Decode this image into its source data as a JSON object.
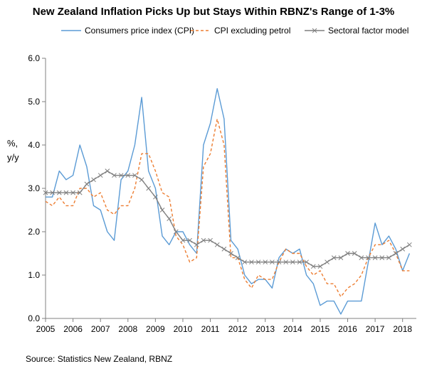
{
  "chart_data": {
    "type": "line",
    "title": "New Zealand Inflation Picks Up but Stays Within RBNZ's Range of 1-3%",
    "ylabel": [
      "%,",
      "y/y"
    ],
    "xlabel": "",
    "source": "Source: Statistics New Zealand, RBNZ",
    "ylim": [
      0,
      6
    ],
    "yticks": [
      "0.0",
      "1.0",
      "2.0",
      "3.0",
      "4.0",
      "5.0",
      "6.0"
    ],
    "xlim": [
      2005,
      2018.5
    ],
    "xticks": [
      "2005",
      "2006",
      "2007",
      "2008",
      "2009",
      "2010",
      "2011",
      "2012",
      "2013",
      "2014",
      "2015",
      "2016",
      "2017",
      "2018"
    ],
    "grid": false,
    "legend_position": "top",
    "series": [
      {
        "name": "Consumers price index (CPI)",
        "color": "#5b9bd5",
        "style": "solid",
        "values": [
          2.8,
          2.8,
          3.4,
          3.2,
          3.3,
          4.0,
          3.5,
          2.6,
          2.5,
          2.0,
          1.8,
          3.2,
          3.4,
          4.0,
          5.1,
          3.4,
          3.0,
          1.9,
          1.7,
          2.0,
          2.0,
          1.7,
          1.5,
          4.0,
          4.5,
          5.3,
          4.6,
          1.8,
          1.6,
          1.0,
          0.8,
          0.9,
          0.9,
          0.7,
          1.4,
          1.6,
          1.5,
          1.6,
          1.0,
          0.8,
          0.3,
          0.4,
          0.4,
          0.1,
          0.4,
          0.4,
          0.4,
          1.3,
          2.2,
          1.7,
          1.9,
          1.6,
          1.1,
          1.5
        ]
      },
      {
        "name": "CPI excluding petrol",
        "color": "#ed7d31",
        "style": "dashed",
        "values": [
          2.7,
          2.6,
          2.8,
          2.6,
          2.6,
          3.0,
          3.0,
          2.8,
          2.9,
          2.5,
          2.4,
          2.6,
          2.6,
          3.0,
          3.8,
          3.8,
          3.4,
          2.9,
          2.8,
          1.9,
          1.7,
          1.3,
          1.4,
          3.5,
          3.8,
          4.6,
          4.0,
          1.4,
          1.4,
          0.9,
          0.7,
          1.0,
          0.9,
          0.9,
          1.3,
          1.6,
          1.5,
          1.5,
          1.2,
          1.0,
          1.1,
          0.8,
          0.8,
          0.5,
          0.7,
          0.8,
          1.0,
          1.4,
          1.7,
          1.7,
          1.8,
          1.5,
          1.1,
          1.1
        ]
      },
      {
        "name": "Sectoral factor model",
        "color": "#7f7f7f",
        "style": "solid-marker",
        "values": [
          2.9,
          2.9,
          2.9,
          2.9,
          2.9,
          2.9,
          3.1,
          3.2,
          3.3,
          3.4,
          3.3,
          3.3,
          3.3,
          3.3,
          3.2,
          3.0,
          2.8,
          2.5,
          2.3,
          2.0,
          1.8,
          1.8,
          1.7,
          1.8,
          1.8,
          1.7,
          1.6,
          1.5,
          1.4,
          1.3,
          1.3,
          1.3,
          1.3,
          1.3,
          1.3,
          1.3,
          1.3,
          1.3,
          1.3,
          1.2,
          1.2,
          1.3,
          1.4,
          1.4,
          1.5,
          1.5,
          1.4,
          1.4,
          1.4,
          1.4,
          1.4,
          1.5,
          1.6,
          1.7
        ]
      }
    ]
  }
}
